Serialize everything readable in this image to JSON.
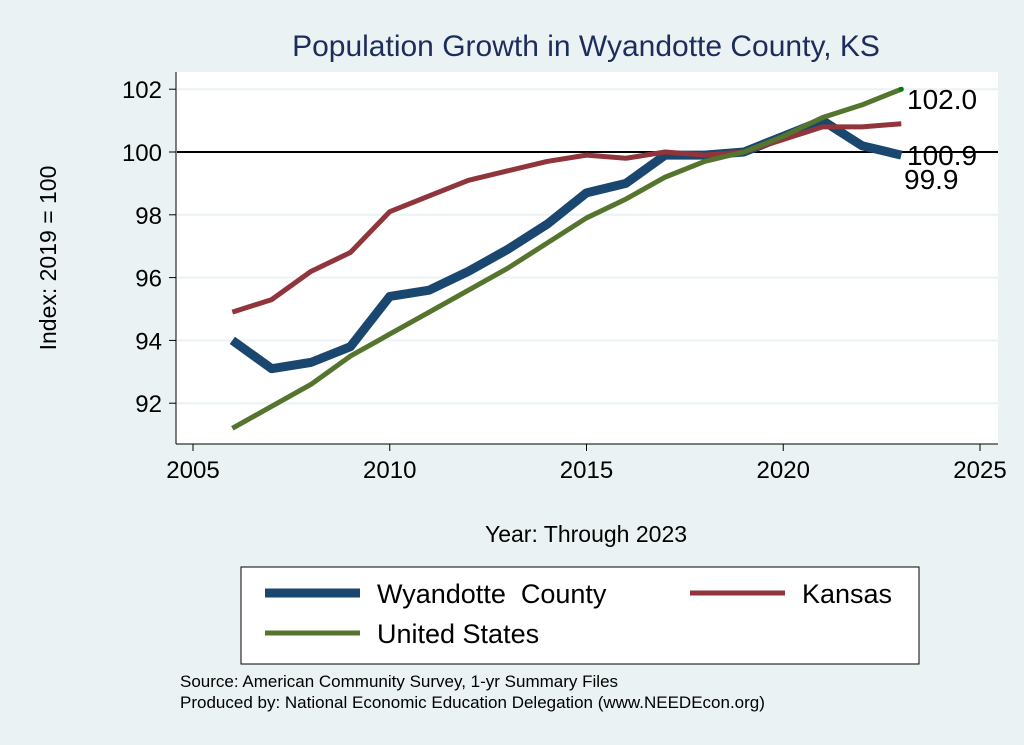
{
  "chart_data": {
    "type": "line",
    "title": "Population Growth in Wyandotte County, KS",
    "xlabel": "Year: Through 2023",
    "ylabel": "Index: 2019 = 100",
    "xlim": [
      2005,
      2025
    ],
    "ylim": [
      91,
      103
    ],
    "xticks": [
      2005,
      2010,
      2015,
      2020,
      2025
    ],
    "yticks": [
      92,
      94,
      96,
      98,
      100,
      102
    ],
    "reference_line": 100,
    "grid": true,
    "legend_position": "bottom",
    "x": [
      2006,
      2007,
      2008,
      2009,
      2010,
      2011,
      2012,
      2013,
      2014,
      2015,
      2016,
      2017,
      2018,
      2019,
      2020,
      2021,
      2022,
      2023
    ],
    "series": [
      {
        "name": "Wyandotte  County",
        "color": "#1a476f",
        "width": 9,
        "values": [
          94.0,
          93.1,
          93.3,
          93.8,
          95.4,
          95.6,
          96.2,
          96.9,
          97.7,
          98.7,
          99.0,
          99.9,
          99.9,
          100.0,
          100.5,
          101.0,
          100.2,
          99.9
        ]
      },
      {
        "name": "Kansas",
        "color": "#90353b",
        "width": 5,
        "values": [
          94.9,
          95.3,
          96.2,
          96.8,
          98.1,
          98.6,
          99.1,
          99.4,
          99.7,
          99.9,
          99.8,
          100.0,
          99.9,
          100.0,
          100.4,
          100.8,
          100.8,
          100.9
        ]
      },
      {
        "name": "United States",
        "color": "#55752f",
        "width": 5,
        "values": [
          91.2,
          91.9,
          92.6,
          93.5,
          94.2,
          94.9,
          95.6,
          96.3,
          97.1,
          97.9,
          98.5,
          99.2,
          99.7,
          100.0,
          100.5,
          101.1,
          101.5,
          102.0
        ]
      }
    ],
    "end_labels": [
      {
        "text": "102.0",
        "value": 102.0
      },
      {
        "text": "100.9",
        "value": 100.9
      },
      {
        "text": "99.9",
        "value": 99.9
      }
    ]
  },
  "notes": {
    "source": "Source: American Community Survey, 1-yr Summary Files",
    "produced": "Produced by: National Economic Education Delegation (www.NEEDEcon.org)"
  }
}
